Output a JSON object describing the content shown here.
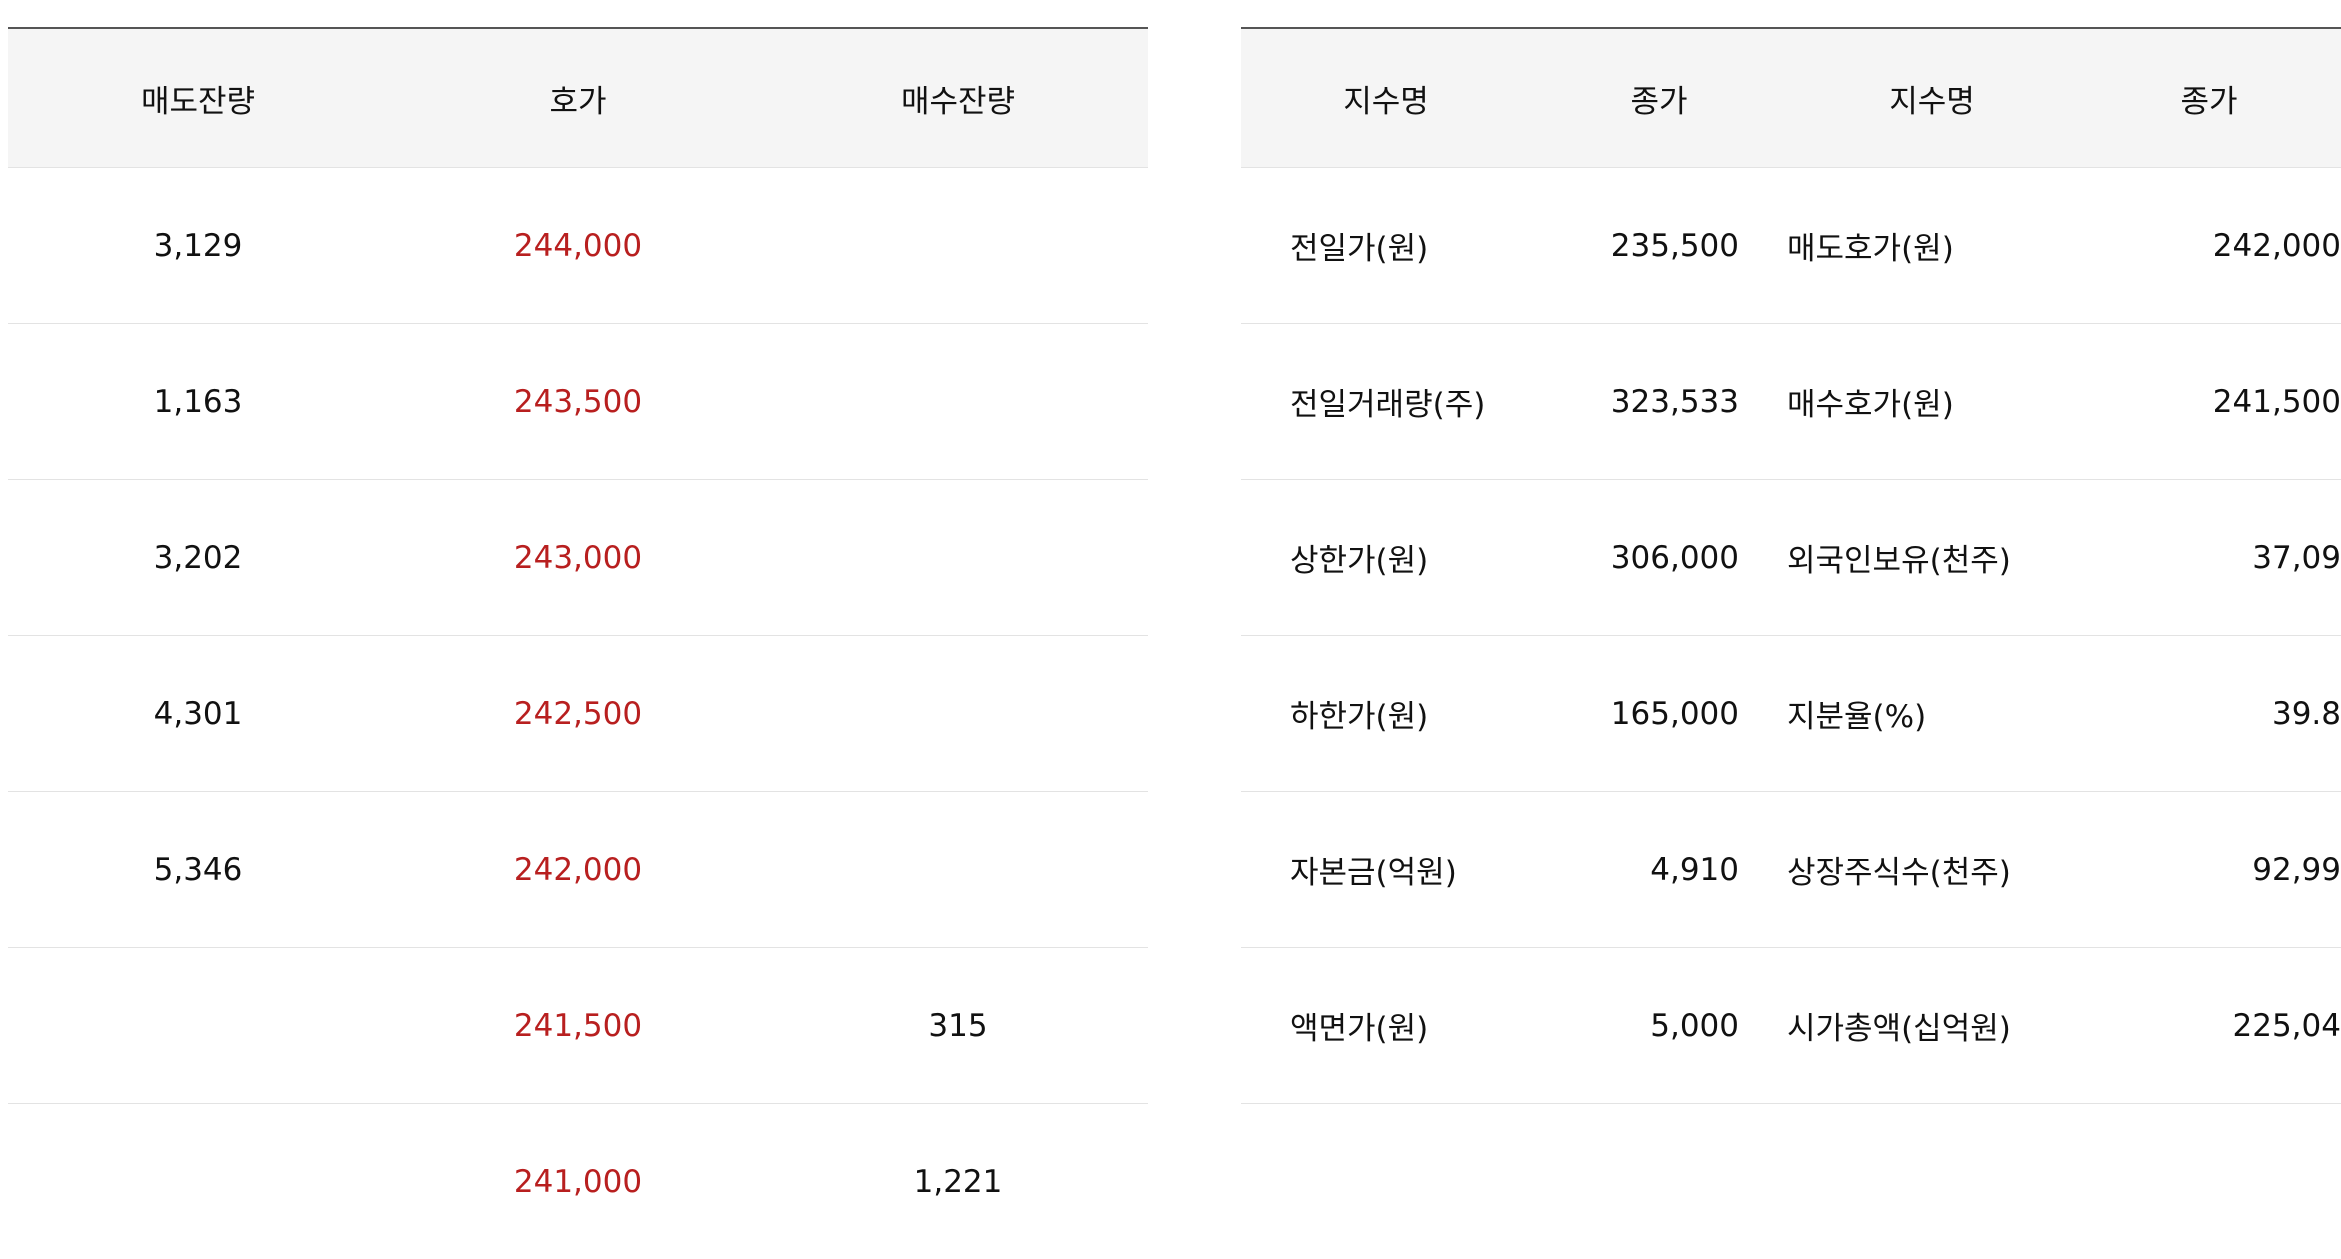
{
  "orderbook": {
    "headers": [
      "매도잔량",
      "호가",
      "매수잔량"
    ],
    "rows": [
      {
        "ask_qty": "3,129",
        "price": "244,000",
        "bid_qty": ""
      },
      {
        "ask_qty": "1,163",
        "price": "243,500",
        "bid_qty": ""
      },
      {
        "ask_qty": "3,202",
        "price": "243,000",
        "bid_qty": ""
      },
      {
        "ask_qty": "4,301",
        "price": "242,500",
        "bid_qty": ""
      },
      {
        "ask_qty": "5,346",
        "price": "242,000",
        "bid_qty": ""
      },
      {
        "ask_qty": "",
        "price": "241,500",
        "bid_qty": "315"
      },
      {
        "ask_qty": "",
        "price": "241,000",
        "bid_qty": "1,221"
      }
    ],
    "price_color": "#b81f1f"
  },
  "stock_info": {
    "headers": [
      "지수명",
      "종가",
      "지수명",
      "종가"
    ],
    "rows": [
      {
        "name1": "전일가(원)",
        "val1": "235,500",
        "name2": "매도호가(원)",
        "val2": "242,000"
      },
      {
        "name1": "전일거래량(주)",
        "val1": "323,533",
        "name2": "매수호가(원)",
        "val2": "241,500"
      },
      {
        "name1": "상한가(원)",
        "val1": "306,000",
        "name2": "외국인보유(천주)",
        "val2": "37,09"
      },
      {
        "name1": "하한가(원)",
        "val1": "165,000",
        "name2": "지분율(%)",
        "val2": "39.8"
      },
      {
        "name1": "자본금(억원)",
        "val1": "4,910",
        "name2": "상장주식수(천주)",
        "val2": "92,99"
      },
      {
        "name1": "액면가(원)",
        "val1": "5,000",
        "name2": "시가총액(십억원)",
        "val2": "225,04"
      }
    ]
  }
}
